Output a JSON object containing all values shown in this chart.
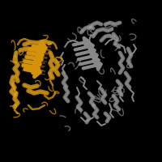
{
  "background_color": "#000000",
  "figsize": [
    2.0,
    2.0
  ],
  "dpi": 100,
  "gold_color": "#D4920A",
  "gold_light": "#E8A820",
  "gold_dark": "#A06808",
  "grey_color": "#888888",
  "grey_light": "#AAAAAA",
  "grey_dark": "#555555"
}
